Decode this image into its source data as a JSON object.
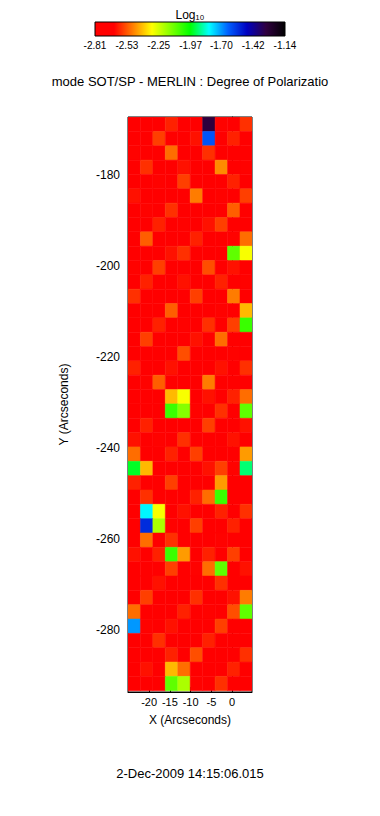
{
  "chart_data": {
    "type": "heatmap",
    "title": "mode SOT/SP - MERLIN : Degree of Polarizatio",
    "subtitle": "2-Dec-2009 14:15:06.015",
    "x_label": "X (Arcseconds)",
    "y_label": "Y (Arcseconds)",
    "xlim": [
      -25.1,
      4.8
    ],
    "ylim": [
      -293.6,
      -167.3
    ],
    "xticks": [
      -20,
      -15,
      -10,
      -5,
      0
    ],
    "yticks": [
      -280,
      -260,
      -240,
      -220,
      -200,
      -180
    ],
    "x": [
      -23.6,
      -20.6,
      -17.6,
      -14.6,
      -11.6,
      -8.6,
      -5.6,
      -2.6,
      0.4,
      3.4
    ],
    "y": [
      -168.9,
      -172.05,
      -175.2,
      -178.35,
      -181.5,
      -184.65,
      -187.8,
      -190.95,
      -194.1,
      -197.25,
      -200.4,
      -203.55,
      -206.7,
      -209.85,
      -213.0,
      -216.15,
      -219.3,
      -222.45,
      -225.6,
      -228.75,
      -231.9,
      -235.05,
      -238.2,
      -241.35,
      -244.5,
      -247.65,
      -250.8,
      -253.95,
      -257.1,
      -260.25,
      -263.4,
      -266.55,
      -269.7,
      -272.85,
      -276.0,
      -279.15,
      -282.3,
      -285.45,
      -288.6,
      -291.75
    ],
    "cells": [
      [
        -2.72,
        -2.66,
        -2.74,
        -2.6,
        -2.7,
        -2.68,
        -1.3,
        -2.64,
        -2.72,
        -2.58
      ],
      [
        -2.68,
        -2.74,
        -2.56,
        -2.7,
        -2.66,
        -2.62,
        -1.62,
        -2.7,
        -2.6,
        -2.74
      ],
      [
        -2.64,
        -2.7,
        -2.72,
        -2.5,
        -2.74,
        -2.68,
        -2.58,
        -2.72,
        -2.66,
        -2.7
      ],
      [
        -2.74,
        -2.58,
        -2.66,
        -2.7,
        -2.62,
        -2.74,
        -2.7,
        -2.46,
        -2.72,
        -2.64
      ],
      [
        -2.7,
        -2.72,
        -2.64,
        -2.74,
        -2.56,
        -2.7,
        -2.66,
        -2.7,
        -2.6,
        -2.72
      ],
      [
        -2.62,
        -2.7,
        -2.74,
        -2.66,
        -2.72,
        -2.48,
        -2.72,
        -2.64,
        -2.74,
        -2.56
      ],
      [
        -2.72,
        -2.64,
        -2.7,
        -2.58,
        -2.7,
        -2.66,
        -2.74,
        -2.7,
        -2.52,
        -2.7
      ],
      [
        -2.66,
        -2.74,
        -2.6,
        -2.72,
        -2.64,
        -2.72,
        -2.62,
        -2.56,
        -2.7,
        -2.66
      ],
      [
        -2.74,
        -2.52,
        -2.7,
        -2.66,
        -2.74,
        -2.6,
        -2.7,
        -2.72,
        -2.64,
        -2.5
      ],
      [
        -2.7,
        -2.68,
        -2.74,
        -2.62,
        -2.58,
        -2.72,
        -2.66,
        -2.7,
        -2.1,
        -2.3
      ],
      [
        -2.64,
        -2.72,
        -2.56,
        -2.74,
        -2.7,
        -2.66,
        -2.54,
        -2.74,
        -2.62,
        -2.7
      ],
      [
        -2.72,
        -2.6,
        -2.7,
        -2.68,
        -2.62,
        -2.74,
        -2.7,
        -2.6,
        -2.72,
        -2.64
      ],
      [
        -2.58,
        -2.74,
        -2.66,
        -2.7,
        -2.72,
        -2.56,
        -2.66,
        -2.72,
        -2.48,
        -2.72
      ],
      [
        -2.7,
        -2.66,
        -2.72,
        -2.52,
        -2.68,
        -2.7,
        -2.74,
        -2.64,
        -2.7,
        -2.4
      ],
      [
        -2.74,
        -2.7,
        -2.6,
        -2.72,
        -2.64,
        -2.72,
        -2.58,
        -2.7,
        -2.56,
        -2.05
      ],
      [
        -2.66,
        -2.56,
        -2.74,
        -2.66,
        -2.7,
        -2.62,
        -2.72,
        -2.5,
        -2.72,
        -2.66
      ],
      [
        -2.72,
        -2.7,
        -2.66,
        -2.74,
        -2.54,
        -2.7,
        -2.66,
        -2.74,
        -2.64,
        -2.7
      ],
      [
        -2.6,
        -2.74,
        -2.7,
        -2.62,
        -2.72,
        -2.66,
        -2.7,
        -2.62,
        -2.7,
        -2.58
      ],
      [
        -2.7,
        -2.64,
        -2.52,
        -2.7,
        -2.66,
        -2.74,
        -2.48,
        -2.7,
        -2.74,
        -2.66
      ],
      [
        -2.74,
        -2.7,
        -2.66,
        -2.4,
        -2.3,
        -2.7,
        -2.62,
        -2.72,
        -2.6,
        -2.5
      ],
      [
        -2.66,
        -2.72,
        -2.7,
        -2.05,
        -2.15,
        -2.64,
        -2.7,
        -2.58,
        -2.66,
        -2.1
      ],
      [
        -2.7,
        -2.6,
        -2.74,
        -2.66,
        -2.7,
        -2.72,
        -2.56,
        -2.7,
        -2.72,
        -2.62
      ],
      [
        -2.62,
        -2.74,
        -2.64,
        -2.72,
        -2.58,
        -2.7,
        -2.74,
        -2.66,
        -2.62,
        -2.7
      ],
      [
        -2.5,
        -2.68,
        -2.72,
        -2.6,
        -2.72,
        -2.56,
        -2.68,
        -2.72,
        -2.7,
        -2.44
      ],
      [
        -1.95,
        -2.4,
        -2.66,
        -2.72,
        -2.66,
        -2.74,
        -2.62,
        -2.56,
        -2.64,
        -1.9
      ],
      [
        -2.6,
        -2.7,
        -2.74,
        -2.56,
        -2.7,
        -2.66,
        -2.72,
        -2.44,
        -2.74,
        -2.66
      ],
      [
        -2.72,
        -2.58,
        -2.66,
        -2.7,
        -2.74,
        -2.6,
        -2.5,
        -2.05,
        -2.66,
        -2.72
      ],
      [
        -2.66,
        -1.8,
        -2.3,
        -2.72,
        -2.62,
        -2.7,
        -2.72,
        -2.6,
        -2.72,
        -2.58
      ],
      [
        -2.7,
        -1.55,
        -2.2,
        -2.64,
        -2.7,
        -2.56,
        -2.66,
        -2.72,
        -2.6,
        -2.7
      ],
      [
        -2.74,
        -2.5,
        -2.7,
        -2.58,
        -2.72,
        -2.7,
        -2.74,
        -2.64,
        -2.7,
        -2.66
      ],
      [
        -2.62,
        -2.72,
        -2.6,
        -2.05,
        -2.44,
        -2.72,
        -2.6,
        -2.7,
        -2.56,
        -2.72
      ],
      [
        -2.7,
        -2.66,
        -2.74,
        -2.56,
        -2.7,
        -2.64,
        -2.5,
        -2.1,
        -2.72,
        -2.62
      ],
      [
        -2.72,
        -2.7,
        -2.62,
        -2.72,
        -2.66,
        -2.7,
        -2.72,
        -2.58,
        -2.66,
        -2.7
      ],
      [
        -2.66,
        -2.56,
        -2.72,
        -2.68,
        -2.74,
        -2.58,
        -2.7,
        -2.72,
        -2.62,
        -2.48
      ],
      [
        -2.5,
        -2.72,
        -2.66,
        -2.7,
        -2.6,
        -2.72,
        -2.64,
        -2.7,
        -2.54,
        -2.1
      ],
      [
        -1.7,
        -2.64,
        -2.7,
        -2.62,
        -2.72,
        -2.66,
        -2.72,
        -2.56,
        -2.7,
        -2.66
      ],
      [
        -2.72,
        -2.7,
        -2.58,
        -2.74,
        -2.66,
        -2.7,
        -2.6,
        -2.72,
        -2.66,
        -2.72
      ],
      [
        -2.66,
        -2.74,
        -2.7,
        -2.6,
        -2.72,
        -2.54,
        -2.7,
        -2.66,
        -2.72,
        -2.58
      ],
      [
        -2.7,
        -2.62,
        -2.66,
        -2.4,
        -2.5,
        -2.72,
        -2.66,
        -2.7,
        -2.6,
        -2.7
      ],
      [
        -2.74,
        -2.7,
        -2.72,
        -2.1,
        -2.2,
        -2.64,
        -2.72,
        -2.58,
        -2.7,
        -2.66
      ]
    ],
    "colorbar": {
      "title": "Log₁₀",
      "range": [
        -2.81,
        -1.14
      ],
      "ticks": [
        -2.81,
        -2.53,
        -2.25,
        -1.97,
        {
          "value": -1.7,
          "label": "-1.70"
        },
        -1.42,
        -1.14
      ]
    }
  }
}
